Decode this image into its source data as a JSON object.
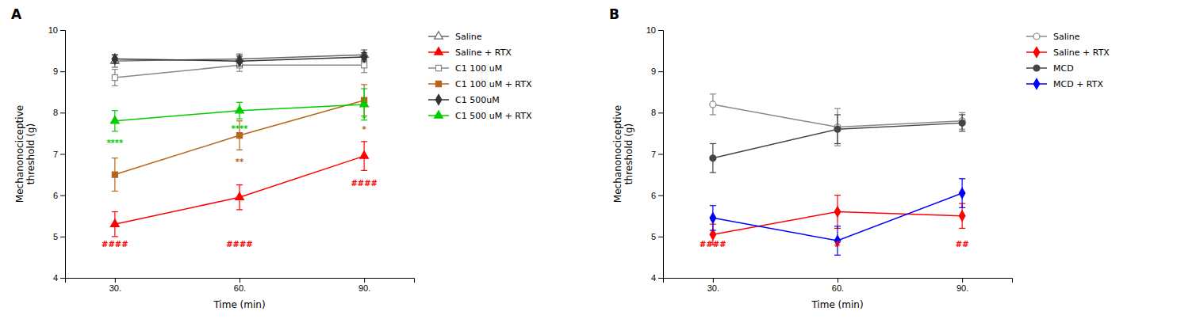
{
  "chart_data": [
    {
      "type": "line",
      "title": "A",
      "x_label": "Time (min)",
      "y_label": "Mechanonociceptive\nthreshold (g)",
      "x": [
        30,
        60,
        90
      ],
      "xlim": [
        18,
        102
      ],
      "xticks": [
        {
          "value": 30,
          "label": "30."
        },
        {
          "value": 60,
          "label": "60."
        },
        {
          "value": 90,
          "label": "90."
        }
      ],
      "ylim": [
        4,
        10
      ],
      "yticks": [
        4,
        5,
        6,
        7,
        8,
        9,
        10
      ],
      "grid": false,
      "legend": "right",
      "series": [
        {
          "name": "Saline",
          "color": "#666666",
          "marker": "triangle-open",
          "line_style": "solid",
          "values": [
            9.25,
            9.3,
            9.4
          ],
          "errors": [
            0.15,
            0.12,
            0.12
          ]
        },
        {
          "name": "Saline + RTX",
          "color": "#ff0000",
          "marker": "triangle",
          "line_style": "solid",
          "values": [
            5.3,
            5.95,
            6.95
          ],
          "errors": [
            0.3,
            0.3,
            0.35
          ]
        },
        {
          "name": "C1 100 uM",
          "color": "#888888",
          "marker": "square-open",
          "line_style": "solid",
          "values": [
            8.85,
            9.15,
            9.15
          ],
          "errors": [
            0.2,
            0.15,
            0.18
          ]
        },
        {
          "name": "C1 100 uM + RTX",
          "color": "#b8651a",
          "marker": "square",
          "line_style": "solid",
          "values": [
            6.5,
            7.45,
            8.3
          ],
          "errors": [
            0.4,
            0.35,
            0.38
          ]
        },
        {
          "name": "C1 500uM",
          "color": "#333333",
          "marker": "diamond",
          "line_style": "solid",
          "values": [
            9.3,
            9.25,
            9.35
          ],
          "errors": [
            0.1,
            0.12,
            0.1
          ]
        },
        {
          "name": "C1 500 uM + RTX",
          "color": "#00cc00",
          "marker": "triangle",
          "line_style": "solid",
          "values": [
            7.8,
            8.05,
            8.2
          ],
          "errors": [
            0.25,
            0.2,
            0.38
          ]
        }
      ],
      "annotations": [
        {
          "text": "####",
          "x": 30,
          "y": 4.72,
          "color": "#ff0000"
        },
        {
          "text": "####",
          "x": 60,
          "y": 4.72,
          "color": "#ff0000"
        },
        {
          "text": "####",
          "x": 90,
          "y": 6.2,
          "color": "#ff0000"
        },
        {
          "text": "****",
          "x": 30,
          "y": 7.18,
          "color": "#00cc00"
        },
        {
          "text": "**",
          "x": 60,
          "y": 6.72,
          "color": "#b8651a"
        },
        {
          "text": "****",
          "x": 60,
          "y": 7.52,
          "color": "#00cc00"
        },
        {
          "text": "*",
          "x": 90,
          "y": 7.78,
          "color": "#00cc00"
        },
        {
          "text": "*",
          "x": 90,
          "y": 7.5,
          "color": "#b8651a"
        }
      ]
    },
    {
      "type": "line",
      "title": "B",
      "x_label": "Time (min)",
      "y_label": "Mechanonociceptive\nthreshold (g)",
      "x": [
        30,
        60,
        90
      ],
      "xlim": [
        18,
        102
      ],
      "xticks": [
        {
          "value": 30,
          "label": "30."
        },
        {
          "value": 60,
          "label": "60."
        },
        {
          "value": 90,
          "label": "90."
        }
      ],
      "ylim": [
        4,
        10
      ],
      "yticks": [
        4,
        5,
        6,
        7,
        8,
        9,
        10
      ],
      "grid": false,
      "legend": "right",
      "series": [
        {
          "name": "Saline",
          "color": "#888888",
          "marker": "circle-open",
          "line_style": "solid",
          "values": [
            8.2,
            7.65,
            7.8
          ],
          "errors": [
            0.25,
            0.45,
            0.2
          ]
        },
        {
          "name": "Saline + RTX",
          "color": "#ff0000",
          "marker": "diamond",
          "line_style": "solid",
          "values": [
            5.05,
            5.6,
            5.5
          ],
          "errors": [
            0.25,
            0.4,
            0.3
          ]
        },
        {
          "name": "MCD",
          "color": "#444444",
          "marker": "circle",
          "line_style": "solid",
          "values": [
            6.9,
            7.6,
            7.75
          ],
          "errors": [
            0.35,
            0.35,
            0.2
          ]
        },
        {
          "name": "MCD + RTX",
          "color": "#0000ff",
          "marker": "diamond",
          "line_style": "solid",
          "values": [
            5.45,
            4.9,
            6.05
          ],
          "errors": [
            0.3,
            0.35,
            0.35
          ]
        }
      ],
      "annotations": [
        {
          "text": "####",
          "x": 30,
          "y": 4.72,
          "color": "#ff0000"
        },
        {
          "text": "#",
          "x": 60,
          "y": 4.72,
          "color": "#ff0000"
        },
        {
          "text": "##",
          "x": 90,
          "y": 4.72,
          "color": "#ff0000"
        }
      ]
    }
  ]
}
